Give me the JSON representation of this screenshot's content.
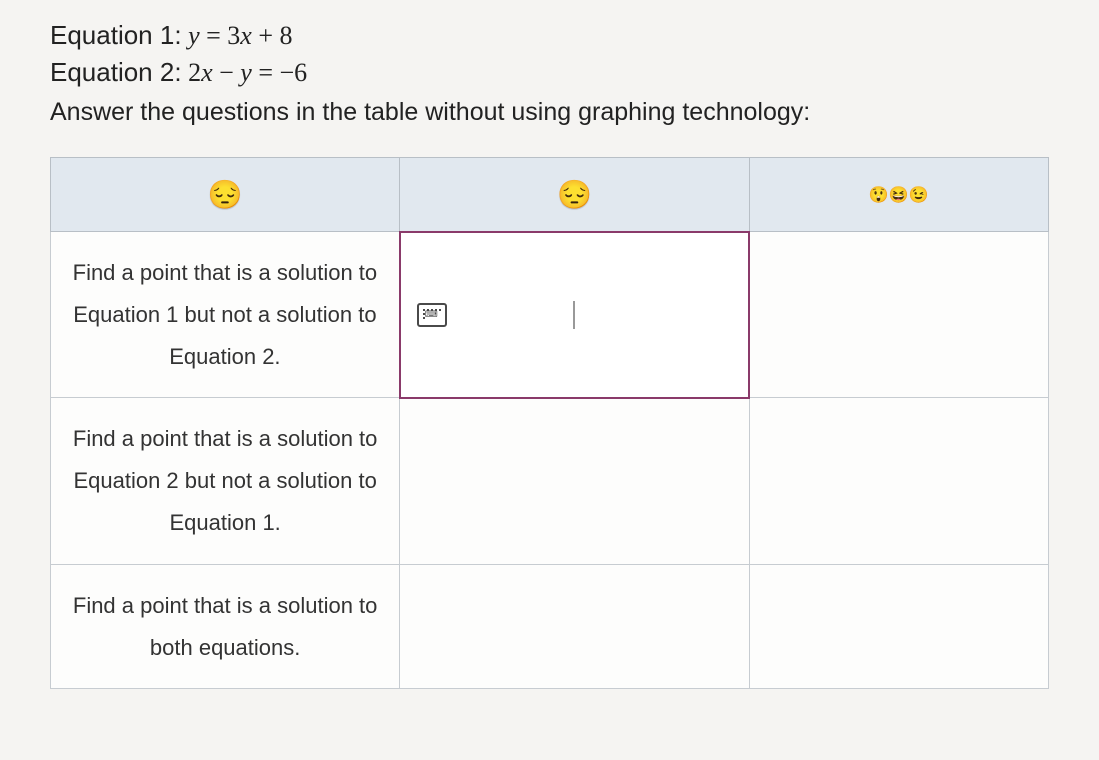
{
  "equations": {
    "eq1_label": "Equation 1:",
    "eq1_math": "y = 3x + 8",
    "eq2_label": "Equation 2:",
    "eq2_math": "2x − y = −6"
  },
  "instruction": "Answer the questions in the table without using graphing technology:",
  "table": {
    "header_icons": {
      "col1": "😔",
      "col2": "😔",
      "col3": "😲😆😉"
    },
    "rows": [
      {
        "prompt": "Find a point that is a solution to Equation 1 but not a solution to Equation 2.",
        "input_value": "",
        "active": true
      },
      {
        "prompt": "Find a point that is a solution to Equation 2 but not a solution to Equation 1.",
        "input_value": "",
        "active": false
      },
      {
        "prompt": "Find a point that is a solution to both equations.",
        "input_value": "",
        "active": false
      }
    ]
  },
  "colors": {
    "page_bg": "#f5f4f2",
    "header_bg": "#e1e8ef",
    "border": "#c7ccd1",
    "active_border": "#8a3a6a",
    "text": "#2a2a2a"
  },
  "typography": {
    "body_font": "Arial",
    "math_font": "Georgia",
    "eq_fontsize": 26,
    "instruction_fontsize": 25,
    "prompt_fontsize": 22
  }
}
